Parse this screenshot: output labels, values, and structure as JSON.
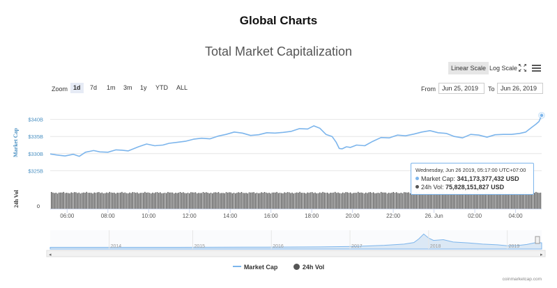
{
  "page": {
    "title": "Global Charts"
  },
  "toolbar": {
    "linear_scale": "Linear Scale",
    "log_scale": "Log Scale",
    "fullscreen_icon": "fullscreen-icon",
    "menu_icon": "menu-icon"
  },
  "range_selector": {
    "zoom_label": "Zoom",
    "buttons": [
      "1d",
      "7d",
      "1m",
      "3m",
      "1y",
      "YTD",
      "ALL"
    ],
    "active": "1d",
    "from_label": "From",
    "from_value": "Jun 25, 2019",
    "to_label": "To",
    "to_value": "Jun 26, 2019"
  },
  "tooltip": {
    "date": "Wednesday, Jun 26 2019, 05:17:00 UTC+07:00",
    "market_cap_label": "Market Cap:",
    "market_cap_value": "341,173,377,432 USD",
    "volume_label": "24h Vol:",
    "volume_value": "75,828,151,827 USD"
  },
  "legend": {
    "market_cap": "Market Cap",
    "volume": "24h Vol"
  },
  "credits": "coinmarketcap.com",
  "colors": {
    "market_cap": "#7cb5ec",
    "volume": "#555555",
    "axis_label": "#4a90c2",
    "navigator_fill": "#dbe8f5"
  },
  "chart_data": {
    "type": "line",
    "title": "Total Market Capitalization",
    "ylabel": "Market Cap",
    "y2label": "24h Vol",
    "ylim": [
      320,
      345
    ],
    "yticks": [
      325,
      330,
      335,
      340
    ],
    "ytick_labels": [
      "$325B",
      "$330B",
      "$335B",
      "$340B"
    ],
    "vol_tick_label": "0",
    "xticks": [
      "06:00",
      "08:00",
      "10:00",
      "12:00",
      "14:00",
      "16:00",
      "18:00",
      "20:00",
      "22:00",
      "26. Jun",
      "02:00",
      "04:00"
    ],
    "x_hours_start": 5.17,
    "x_hours_end": 29.28,
    "market_cap_series": {
      "name": "Market Cap",
      "unit": "USD billions",
      "x_hours": [
        5.17,
        5.5,
        5.9,
        6.3,
        6.6,
        6.9,
        7.3,
        7.6,
        8.0,
        8.4,
        8.7,
        9.0,
        9.5,
        9.9,
        10.3,
        10.7,
        11.0,
        11.4,
        11.8,
        12.2,
        12.6,
        13.0,
        13.4,
        13.8,
        14.2,
        14.6,
        15.0,
        15.4,
        15.8,
        16.2,
        16.6,
        17.0,
        17.4,
        17.8,
        18.1,
        18.4,
        18.7,
        19.0,
        19.2,
        19.35,
        19.5,
        19.7,
        19.9,
        20.2,
        20.6,
        21.0,
        21.4,
        21.8,
        22.2,
        22.6,
        23.0,
        23.4,
        23.8,
        24.2,
        24.6,
        25.0,
        25.4,
        25.8,
        26.2,
        26.6,
        27.0,
        27.4,
        27.8,
        28.2,
        28.5,
        28.8,
        29.0,
        29.15,
        29.28
      ],
      "values": [
        329.9,
        329.6,
        329.3,
        329.8,
        329.2,
        330.4,
        330.9,
        330.5,
        330.4,
        331.1,
        331.0,
        330.8,
        332.0,
        332.8,
        332.3,
        332.5,
        333.0,
        333.3,
        333.6,
        334.2,
        334.5,
        334.3,
        335.1,
        335.6,
        336.3,
        336.0,
        335.3,
        335.5,
        336.1,
        336.0,
        336.2,
        336.5,
        337.3,
        337.2,
        338.1,
        337.4,
        335.6,
        335.0,
        333.3,
        331.5,
        331.4,
        332.0,
        331.8,
        332.5,
        332.3,
        333.6,
        334.7,
        334.6,
        335.4,
        335.2,
        335.7,
        336.3,
        336.7,
        336.1,
        335.9,
        335.0,
        334.6,
        335.6,
        335.4,
        334.8,
        335.5,
        335.6,
        335.6,
        335.9,
        336.3,
        337.7,
        338.6,
        339.4,
        341.17
      ]
    },
    "volume_series": {
      "name": "24h Vol",
      "unit": "USD billions",
      "approx_value": 75.8
    },
    "navigator": {
      "year_labels": [
        "2014",
        "2015",
        "2016",
        "2017",
        "2018",
        "2019"
      ],
      "note": "overview of all-time market cap"
    }
  }
}
